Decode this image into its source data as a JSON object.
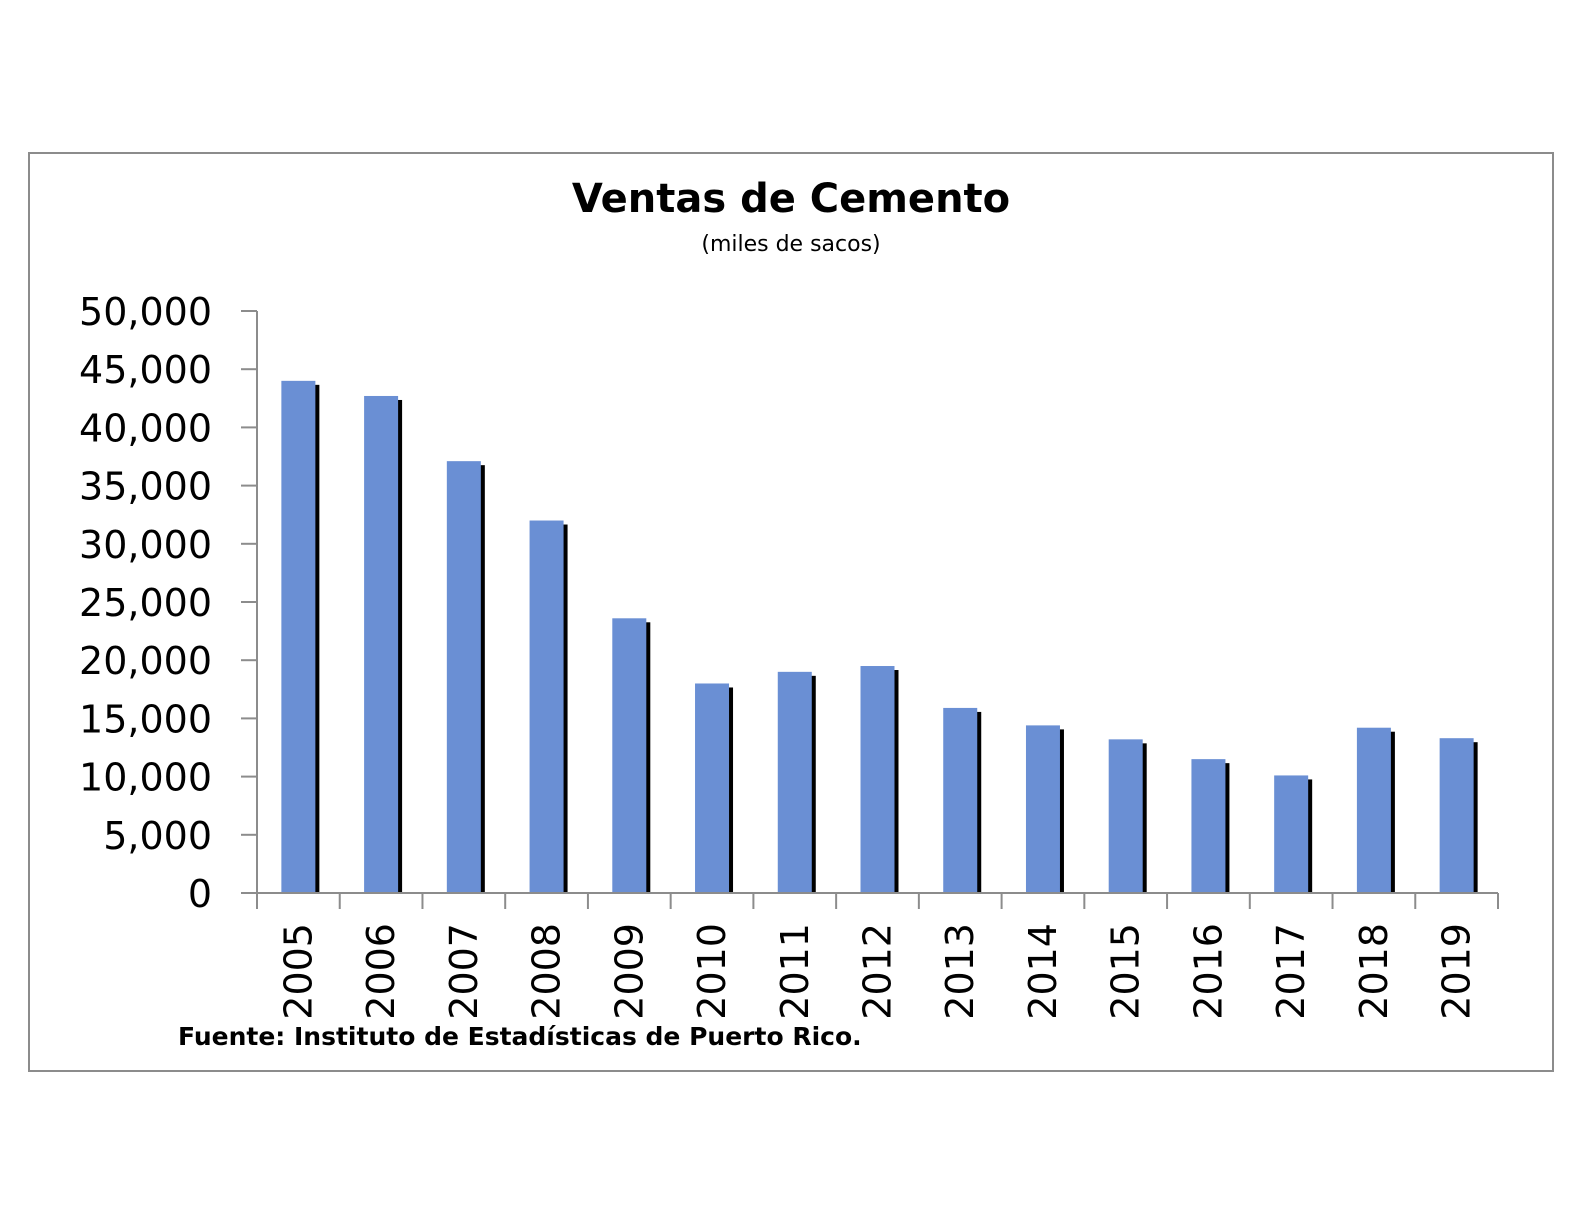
{
  "chart_data": {
    "type": "bar",
    "title": "Ventas de Cemento",
    "subtitle": "(miles de sacos)",
    "source": "Fuente: Instituto de Estadísticas de Puerto Rico.",
    "categories": [
      "2005",
      "2006",
      "2007",
      "2008",
      "2009",
      "2010",
      "2011",
      "2012",
      "2013",
      "2014",
      "2015",
      "2016",
      "2017",
      "2018",
      "2019"
    ],
    "values": [
      44000,
      42700,
      37100,
      32000,
      23600,
      18000,
      19000,
      19500,
      15900,
      14400,
      13200,
      11500,
      10100,
      14200,
      13300
    ],
    "ylim": [
      0,
      50000
    ],
    "yticks": [
      0,
      5000,
      10000,
      15000,
      20000,
      25000,
      30000,
      35000,
      40000,
      45000,
      50000
    ],
    "ytick_labels": [
      "0",
      "5,000",
      "10,000",
      "15,000",
      "20,000",
      "25,000",
      "30,000",
      "35,000",
      "40,000",
      "45,000",
      "50,000"
    ],
    "grid": false,
    "legend": "none",
    "bar_color": "#6a8fd4",
    "shadow_color": "#000000",
    "axis_color": "#8c8c8c"
  }
}
